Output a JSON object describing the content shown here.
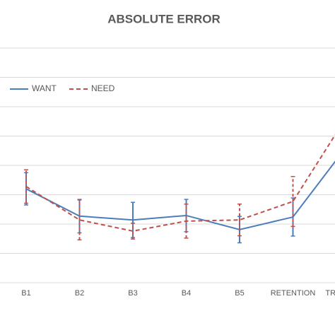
{
  "chart_data": {
    "type": "line",
    "title": "ABSOLUTE ERROR",
    "categories": [
      "B1",
      "B2",
      "B3",
      "B4",
      "B5",
      "RETENTION",
      "TRANSFER"
    ],
    "series": [
      {
        "name": "WANT",
        "color": "#4a7ebb",
        "dash": false,
        "values": [
          3.2,
          2.27,
          2.14,
          2.29,
          1.81,
          2.24,
          4.63
        ],
        "errors": [
          0.55,
          0.57,
          0.6,
          0.55,
          0.45,
          0.65,
          null
        ]
      },
      {
        "name": "NEED",
        "color": "#c0504d",
        "dash": true,
        "values": [
          3.28,
          2.14,
          1.76,
          2.1,
          2.14,
          2.77,
          5.64
        ],
        "errors": [
          0.57,
          0.68,
          0.27,
          0.58,
          0.54,
          0.85,
          null
        ]
      }
    ],
    "ylim": [
      0,
      8
    ],
    "gridlines": [
      1,
      2,
      3,
      4,
      5,
      6,
      7,
      8
    ],
    "grid": true,
    "legend": "top-left"
  }
}
